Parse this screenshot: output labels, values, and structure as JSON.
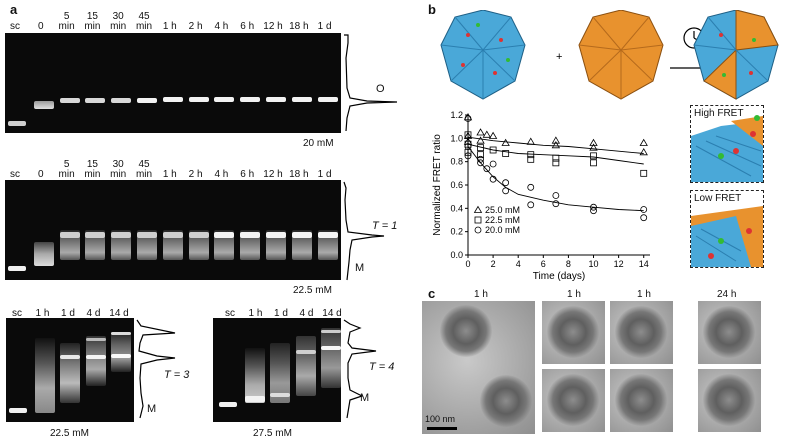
{
  "panel_a": {
    "label": "a",
    "top_lanes": [
      "sc",
      "0",
      "5\nmin",
      "15\nmin",
      "30\nmin",
      "45\nmin",
      "1 h",
      "2 h",
      "4 h",
      "6 h",
      "12 h",
      "18 h",
      "1 d"
    ],
    "top_profile_label": "O",
    "top_conc": "20 mM",
    "mid_lanes": [
      "sc",
      "0",
      "5\nmin",
      "15\nmin",
      "30\nmin",
      "45\nmin",
      "1 h",
      "2 h",
      "4 h",
      "6 h",
      "12 h",
      "18 h",
      "1 d"
    ],
    "mid_profile_T": "T = 1",
    "mid_profile_M": "M",
    "mid_conc": "22.5 mM",
    "bl_lanes": [
      "sc",
      "1 h",
      "1 d",
      "4 d",
      "14 d"
    ],
    "bl_T": "T = 3",
    "bl_M": "M",
    "bl_conc": "22.5 mM",
    "br_lanes": [
      "sc",
      "1 h",
      "1 d",
      "4 d",
      "14 d"
    ],
    "br_T": "T = 4",
    "br_M": "M",
    "br_conc": "27.5 mM"
  },
  "panel_b": {
    "label": "b",
    "plus": "+",
    "frame_high": "High FRET",
    "frame_low": "Low FRET",
    "colors": {
      "blue": "#4aa8d8",
      "orange": "#e8922e"
    }
  },
  "panel_c": {
    "label": "c",
    "time_labels": [
      "1 h",
      "1 h",
      "1 h",
      "24 h"
    ],
    "scale": "100 nm"
  },
  "chart_data": {
    "type": "scatter",
    "xlabel": "Time (days)",
    "ylabel": "Normalized FRET ratio",
    "xlim": [
      0,
      14.5
    ],
    "ylim": [
      0,
      1.2
    ],
    "xticks": [
      0,
      2,
      4,
      6,
      8,
      10,
      12,
      14
    ],
    "yticks": [
      0,
      0.2,
      0.4,
      0.6,
      0.8,
      1.0,
      1.2
    ],
    "legend": "bottom-left",
    "series": [
      {
        "name": "25.0 mM",
        "marker": "triangle",
        "points": [
          [
            0,
            1.18
          ],
          [
            0,
            1.02
          ],
          [
            0,
            0.97
          ],
          [
            1,
            1.05
          ],
          [
            1,
            0.98
          ],
          [
            1.5,
            1.03
          ],
          [
            2,
            1.02
          ],
          [
            3,
            0.96
          ],
          [
            5,
            0.97
          ],
          [
            7,
            0.98
          ],
          [
            7,
            0.94
          ],
          [
            10,
            0.96
          ],
          [
            10,
            0.92
          ],
          [
            14,
            0.96
          ],
          [
            14,
            0.88
          ]
        ],
        "fit": [
          [
            0,
            1.01
          ],
          [
            2,
            0.98
          ],
          [
            4,
            0.96
          ],
          [
            6,
            0.94
          ],
          [
            8,
            0.93
          ],
          [
            10,
            0.91
          ],
          [
            12,
            0.89
          ],
          [
            14,
            0.87
          ]
        ]
      },
      {
        "name": "22.5 mM",
        "marker": "square",
        "points": [
          [
            0,
            1.03
          ],
          [
            0,
            0.95
          ],
          [
            0,
            0.88
          ],
          [
            1,
            0.92
          ],
          [
            1,
            0.86
          ],
          [
            2,
            0.9
          ],
          [
            3,
            0.87
          ],
          [
            5,
            0.86
          ],
          [
            5,
            0.82
          ],
          [
            7,
            0.83
          ],
          [
            7,
            0.79
          ],
          [
            10,
            0.85
          ],
          [
            10,
            0.79
          ],
          [
            14,
            0.7
          ]
        ],
        "fit": [
          [
            0,
            0.95
          ],
          [
            2,
            0.9
          ],
          [
            4,
            0.87
          ],
          [
            6,
            0.86
          ],
          [
            8,
            0.85
          ],
          [
            10,
            0.84
          ],
          [
            12,
            0.81
          ],
          [
            14,
            0.78
          ]
        ]
      },
      {
        "name": "20.0 mM",
        "marker": "circle",
        "points": [
          [
            0,
            1.17
          ],
          [
            0,
            0.93
          ],
          [
            0,
            0.85
          ],
          [
            1,
            0.82
          ],
          [
            1,
            0.79
          ],
          [
            1.5,
            0.74
          ],
          [
            2,
            0.78
          ],
          [
            2,
            0.65
          ],
          [
            3,
            0.62
          ],
          [
            3,
            0.55
          ],
          [
            5,
            0.58
          ],
          [
            5,
            0.43
          ],
          [
            7,
            0.51
          ],
          [
            7,
            0.44
          ],
          [
            10,
            0.41
          ],
          [
            10,
            0.38
          ],
          [
            14,
            0.39
          ],
          [
            14,
            0.32
          ]
        ],
        "fit": [
          [
            0,
            0.93
          ],
          [
            1,
            0.79
          ],
          [
            2,
            0.67
          ],
          [
            3,
            0.58
          ],
          [
            4,
            0.52
          ],
          [
            6,
            0.47
          ],
          [
            8,
            0.43
          ],
          [
            10,
            0.41
          ],
          [
            12,
            0.39
          ],
          [
            14,
            0.38
          ]
        ]
      }
    ]
  }
}
